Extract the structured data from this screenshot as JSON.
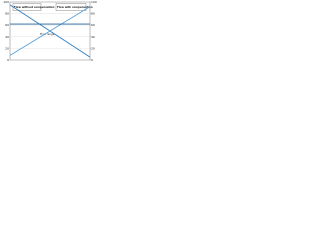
{
  "chart_data": {
    "type": "line",
    "annotations": [
      "Flow without compensation",
      "Flow with compensation",
      "Flow range"
    ],
    "x": [
      0,
      50,
      100
    ],
    "xlim": [
      0,
      100
    ],
    "ylim": [
      0,
      100
    ],
    "yticks": [
      0,
      20,
      40,
      60,
      80,
      100
    ],
    "y2lim": [
      0,
      100
    ],
    "y2ticks": [
      0,
      20,
      40,
      60,
      80,
      100
    ],
    "grid": true,
    "series": [
      {
        "color": "#2f7fc1",
        "values": [
          95,
          50,
          5
        ]
      },
      {
        "color": "#5aa0d8",
        "values": [
          8,
          50,
          92
        ]
      },
      {
        "color": "#1f5f99",
        "values": [
          62,
          62,
          62
        ],
        "axis": "y2"
      }
    ]
  }
}
